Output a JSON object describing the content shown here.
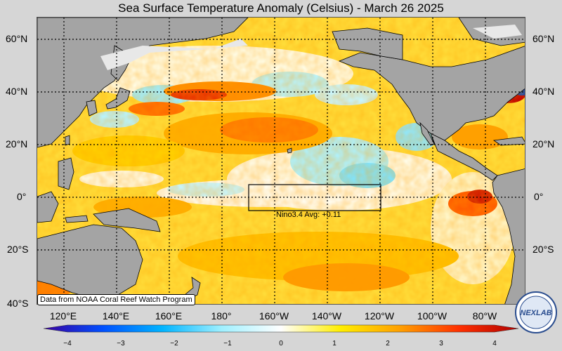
{
  "title": "Sea Surface Temperature Anomaly (Celsius) - March 26 2025",
  "lat_labels": [
    "60°N",
    "40°N",
    "20°N",
    "0°",
    "20°S",
    "40°S"
  ],
  "lon_labels": [
    "120°E",
    "140°E",
    "160°E",
    "180°",
    "160°W",
    "140°W",
    "120°W",
    "100°W",
    "80°W"
  ],
  "nino_label": "Nino3.4 Avg: +0.11",
  "attribution": "Data from NOAA Coral Reef Watch Program",
  "colorbar": {
    "ticks": [
      "−4",
      "−3",
      "−2",
      "−1",
      "0",
      "1",
      "2",
      "3",
      "4"
    ],
    "range": [
      -4,
      4
    ],
    "colors": [
      "#3a00a0",
      "#0050ff",
      "#00b4ff",
      "#9ff0ff",
      "#ffffff",
      "#ffee00",
      "#ffa000",
      "#ff3000",
      "#b00000"
    ]
  },
  "logo_text": "NEXLAB",
  "colors": {
    "land": "#a4a4a4",
    "ice": "#e8e8e8",
    "background": "#d6d6d6"
  }
}
